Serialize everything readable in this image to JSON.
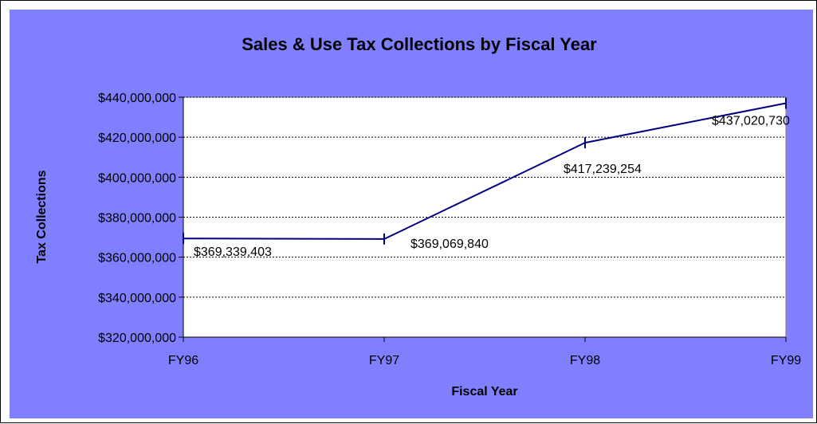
{
  "chart_data": {
    "type": "line",
    "title": "Sales & Use Tax Collections by Fiscal Year",
    "xlabel": "Fiscal Year",
    "ylabel": "Tax Collections",
    "categories": [
      "FY96",
      "FY97",
      "FY98",
      "FY99"
    ],
    "series": [
      {
        "values": [
          369339403,
          369069840,
          417239254,
          437020730
        ],
        "data_labels": [
          "$369,339,403",
          "$369,069,840",
          "$417,239,254",
          "$437,020,730"
        ]
      }
    ],
    "ylim": [
      320000000,
      440000000
    ],
    "yticks": [
      320000000,
      340000000,
      360000000,
      380000000,
      400000000,
      420000000,
      440000000
    ],
    "ytick_labels": [
      "$320,000,000",
      "$340,000,000",
      "$360,000,000",
      "$380,000,000",
      "$400,000,000",
      "$420,000,000",
      "$440,000,000"
    ],
    "grid": "horizontal-dashed",
    "legend": "none",
    "colors": {
      "chart_area": "#8080ff",
      "plot_area": "#ffffff",
      "series_line": "#000080",
      "gridline": "#000000"
    }
  }
}
